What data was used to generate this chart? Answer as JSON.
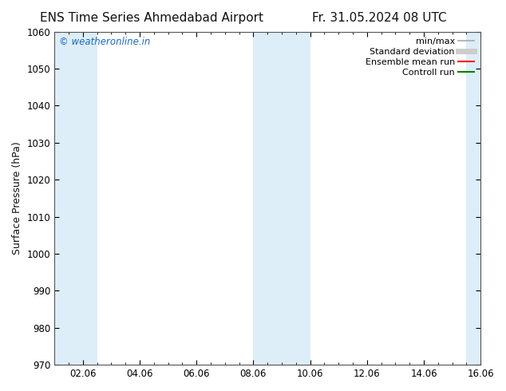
{
  "title_left": "ENS Time Series Ahmedabad Airport",
  "title_right": "Fr. 31.05.2024 08 UTC",
  "ylabel": "Surface Pressure (hPa)",
  "ylim": [
    970,
    1060
  ],
  "yticks": [
    970,
    980,
    990,
    1000,
    1010,
    1020,
    1030,
    1040,
    1050,
    1060
  ],
  "xlim_start": 0,
  "xlim_end": 15,
  "xtick_labels": [
    "02.06",
    "04.06",
    "06.06",
    "08.06",
    "10.06",
    "12.06",
    "14.06",
    "16.06"
  ],
  "xtick_positions": [
    1,
    3,
    5,
    7,
    9,
    11,
    13,
    15
  ],
  "shaded_bands": [
    {
      "x_start": 0.0,
      "x_end": 1.5,
      "color": "#ddeef8"
    },
    {
      "x_start": 7.0,
      "x_end": 9.0,
      "color": "#ddeef8"
    },
    {
      "x_start": 14.5,
      "x_end": 15.0,
      "color": "#ddeef8"
    }
  ],
  "legend_entries": [
    {
      "label": "min/max",
      "color": "#aaaaaa",
      "linestyle": "-",
      "linewidth": 1.2
    },
    {
      "label": "Standard deviation",
      "color": "#cccccc",
      "linestyle": "-",
      "linewidth": 5
    },
    {
      "label": "Ensemble mean run",
      "color": "red",
      "linestyle": "-",
      "linewidth": 1.5
    },
    {
      "label": "Controll run",
      "color": "green",
      "linestyle": "-",
      "linewidth": 1.5
    }
  ],
  "watermark_text": "© weatheronline.in",
  "watermark_color": "#1a6abf",
  "background_color": "#ffffff",
  "plot_bg_color": "#ffffff",
  "title_fontsize": 11,
  "tick_fontsize": 8.5,
  "ylabel_fontsize": 9,
  "legend_fontsize": 8
}
